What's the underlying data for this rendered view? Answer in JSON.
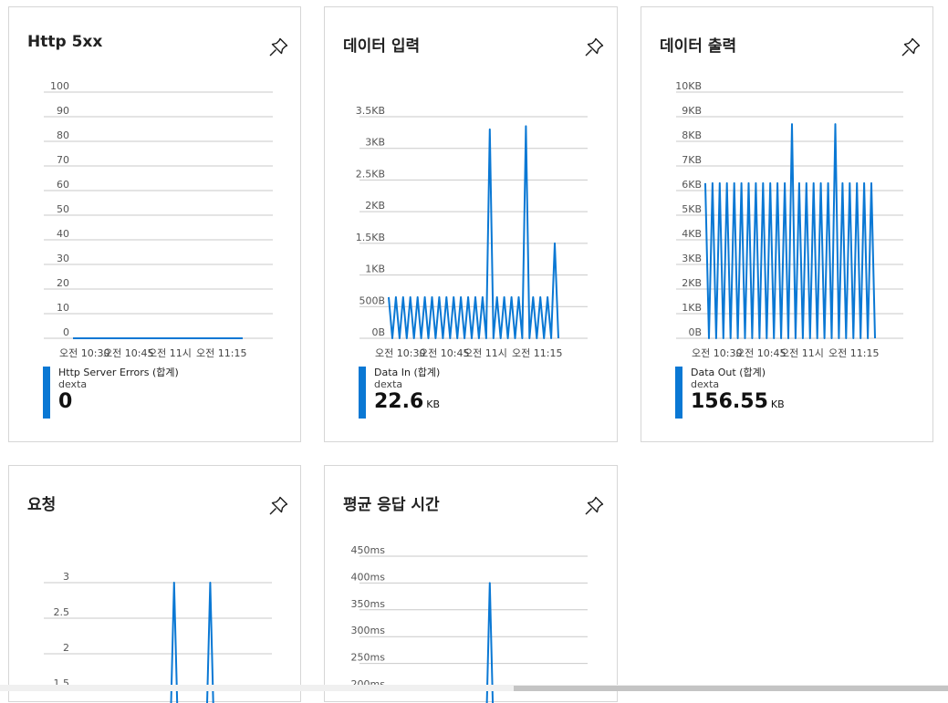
{
  "accent_color": "#0a78d4",
  "pin_icon": "pin-icon",
  "tiles": [
    {
      "title": "Http 5xx",
      "chart_data": {
        "type": "line",
        "yticks": [
          "100",
          "90",
          "80",
          "70",
          "60",
          "50",
          "40",
          "30",
          "20",
          "10",
          "0"
        ],
        "ylim": [
          0,
          100
        ],
        "xticks": [
          "오전 10:30",
          "오전 10:45",
          "오전 11시",
          "오전 11:15"
        ],
        "series": [
          {
            "name": "Http Server Errors (합계)",
            "values": [
              0,
              0,
              0,
              0,
              0,
              0,
              0,
              0,
              0,
              0,
              0,
              0,
              0,
              0,
              0,
              0,
              0,
              0,
              0,
              0,
              0,
              0,
              0,
              0,
              0,
              0,
              0,
              0,
              0,
              0,
              0,
              0,
              0,
              0,
              0,
              0,
              0,
              0,
              0,
              0,
              0,
              0,
              0,
              0,
              0,
              0,
              0,
              0
            ]
          }
        ]
      },
      "legend": {
        "name": "Http Server Errors (합계)",
        "sub": "dexta",
        "value": "0",
        "unit": ""
      }
    },
    {
      "title": "데이터 입력",
      "chart_data": {
        "type": "line",
        "yticks": [
          "3.5KB",
          "3KB",
          "2.5KB",
          "2KB",
          "1.5KB",
          "1KB",
          "500B",
          "0B"
        ],
        "ylim": [
          0,
          3.5
        ],
        "xticks": [
          "오전 10:30",
          "오전 10:45",
          "오전 11시",
          "오전 11:15"
        ],
        "series": [
          {
            "name": "Data In (합계)",
            "values": [
              0.65,
              0,
              0.65,
              0,
              0.65,
              0,
              0.65,
              0,
              0.65,
              0,
              0.65,
              0,
              0.65,
              0,
              0.65,
              0,
              0.65,
              0,
              0.65,
              0,
              0.65,
              0,
              0.65,
              0,
              0.65,
              0,
              0.65,
              0,
              3.3,
              0,
              0.65,
              0,
              0.65,
              0,
              0.65,
              0,
              0.65,
              0,
              3.35,
              0,
              0.65,
              0,
              0.65,
              0,
              0.65,
              0,
              1.5,
              0
            ]
          }
        ]
      },
      "legend": {
        "name": "Data In (합계)",
        "sub": "dexta",
        "value": "22.6",
        "unit": "KB"
      }
    },
    {
      "title": "데이터 출력",
      "chart_data": {
        "type": "line",
        "yticks": [
          "10KB",
          "9KB",
          "8KB",
          "7KB",
          "6KB",
          "5KB",
          "4KB",
          "3KB",
          "2KB",
          "1KB",
          "0B"
        ],
        "ylim": [
          0,
          10
        ],
        "xticks": [
          "오전 10:30",
          "오전 10:45",
          "오전 11시",
          "오전 11:15"
        ],
        "series": [
          {
            "name": "Data Out (합계)",
            "values": [
              6.3,
              0,
              6.3,
              0,
              6.3,
              0,
              6.3,
              0,
              6.3,
              0,
              6.3,
              0,
              6.3,
              0,
              6.3,
              0,
              6.3,
              0,
              6.3,
              0,
              6.3,
              0,
              6.3,
              0,
              8.7,
              0,
              6.3,
              0,
              6.3,
              0,
              6.3,
              0,
              6.3,
              0,
              6.3,
              0,
              8.7,
              0,
              6.3,
              0,
              6.3,
              0,
              6.3,
              0,
              6.3,
              0,
              6.3,
              0
            ]
          }
        ]
      },
      "legend": {
        "name": "Data Out (합계)",
        "sub": "dexta",
        "value": "156.55",
        "unit": "KB"
      }
    },
    {
      "title": "요청",
      "chart_data": {
        "type": "line",
        "yticks": [
          "3",
          "2.5",
          "2",
          "1.5"
        ],
        "ylim": [
          1.5,
          3
        ],
        "series": [
          {
            "name": "",
            "values": [
              0,
              0,
              0,
              0,
              0,
              0,
              0,
              0,
              0,
              0,
              0,
              0,
              0,
              0,
              0,
              0,
              0,
              0,
              0,
              0,
              0,
              0,
              0,
              0,
              0,
              0,
              0,
              0,
              3,
              0,
              0,
              0,
              0,
              0,
              0,
              0,
              0,
              0,
              3,
              0,
              0,
              0,
              0,
              0,
              0,
              0,
              0,
              0
            ]
          }
        ]
      }
    },
    {
      "title": "평균 응답 시간",
      "chart_data": {
        "type": "line",
        "yticks": [
          "450ms",
          "400ms",
          "350ms",
          "300ms",
          "250ms",
          "200ms"
        ],
        "ylim": [
          200,
          450
        ],
        "series": [
          {
            "name": "",
            "values": [
              0,
              0,
              0,
              0,
              0,
              0,
              0,
              0,
              0,
              0,
              0,
              0,
              0,
              0,
              0,
              0,
              0,
              0,
              0,
              0,
              0,
              0,
              0,
              0,
              0,
              0,
              0,
              0,
              400,
              0,
              0,
              0,
              0,
              0,
              0,
              0,
              0,
              0,
              0,
              0,
              0,
              0,
              0,
              0,
              0,
              0,
              0,
              0
            ]
          }
        ]
      }
    }
  ]
}
